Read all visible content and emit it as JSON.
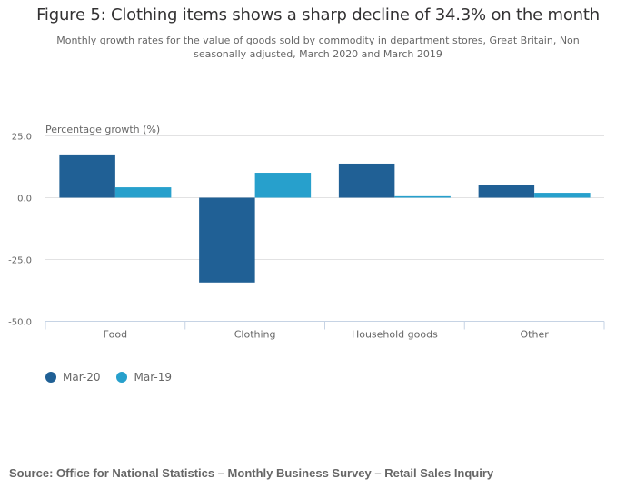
{
  "title": "Figure 5: Clothing items shows a sharp decline of 34.3% on the month",
  "subtitle": "Monthly growth rates for the value of goods sold by commodity in department stores, Great Britain, Non seasonally adjusted, March 2020 and March 2019",
  "source": "Source: Office for National Statistics – Monthly Business Survey – Retail Sales Inquiry",
  "chart_data": {
    "type": "bar",
    "title": "Figure 5: Clothing items shows a sharp decline of 34.3% on the month",
    "subtitle": "Monthly growth rates for the value of goods sold by commodity in department stores, Great Britain, Non seasonally adjusted, March 2020 and March 2019",
    "xlabel": "",
    "ylabel": "Percentage growth (%)",
    "categories": [
      "Food",
      "Clothing",
      "Household goods",
      "Other"
    ],
    "series": [
      {
        "name": "Mar-20",
        "color": "#206095",
        "values": [
          17.5,
          -34.3,
          13.8,
          5.3
        ]
      },
      {
        "name": "Mar-19",
        "color": "#27a0cc",
        "values": [
          4.2,
          10.1,
          0.6,
          2.0
        ]
      }
    ],
    "ylim": [
      -50,
      25
    ],
    "yticks": [
      25,
      0,
      -25,
      -50
    ],
    "ytick_labels": [
      "25.0",
      "0.0",
      "-25.0",
      "-50.0"
    ],
    "grid": true,
    "legend": "bottom-left"
  }
}
